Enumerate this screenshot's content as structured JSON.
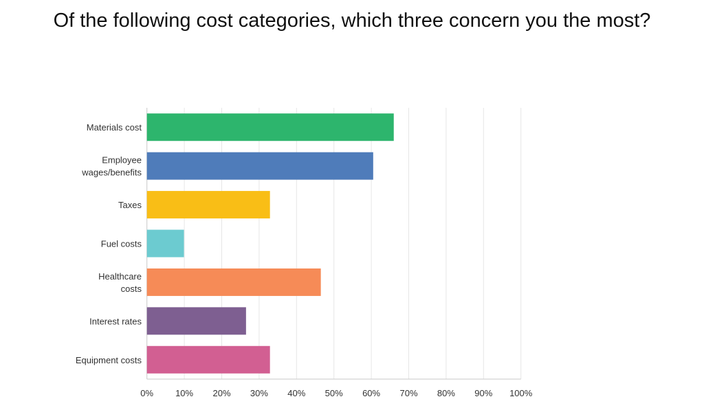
{
  "chart_data": {
    "type": "bar",
    "orientation": "horizontal",
    "title": "Of the following cost categories, which three concern you the most?",
    "categories": [
      [
        "Materials cost"
      ],
      [
        "Employee",
        "wages/benefits"
      ],
      [
        "Taxes"
      ],
      [
        "Fuel costs"
      ],
      [
        "Healthcare",
        "costs"
      ],
      [
        "Interest rates"
      ],
      [
        "Equipment costs"
      ]
    ],
    "values": [
      66.0,
      60.5,
      32.9,
      9.9,
      46.5,
      26.5,
      32.9
    ],
    "colors": [
      "#2db56d",
      "#4f7cba",
      "#f9be16",
      "#6ccbd0",
      "#f68b57",
      "#7e5f91",
      "#d25f92"
    ],
    "xlim": [
      0,
      100
    ],
    "xticks": [
      "0%",
      "10%",
      "20%",
      "30%",
      "40%",
      "50%",
      "60%",
      "70%",
      "80%",
      "90%",
      "100%"
    ],
    "grid": true,
    "xlabel": "",
    "ylabel": ""
  }
}
